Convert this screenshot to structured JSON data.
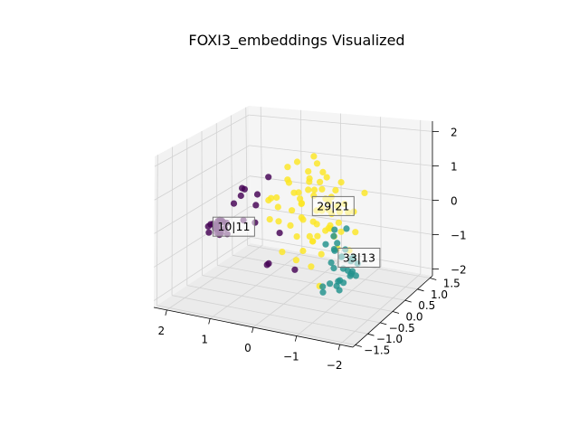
{
  "chart_data": {
    "type": "scatter",
    "projection": "3d",
    "title": "FOXI3_embeddings Visualized",
    "xlabel": "",
    "ylabel": "",
    "zlabel": "",
    "x_ticks": [
      2,
      1,
      0,
      -1,
      -2
    ],
    "y_ticks": [
      -1.5,
      -1.0,
      -0.5,
      0.0,
      0.5,
      1.0,
      1.5
    ],
    "z_ticks": [
      -2,
      -1,
      0,
      1,
      2
    ],
    "x_tick_labels": [
      "2",
      "1",
      "0",
      "−1",
      "−2"
    ],
    "y_tick_labels": [
      "−1.5",
      "−1.0",
      "−0.5",
      "0.0",
      "0.5",
      "1.0",
      "1.5"
    ],
    "z_tick_labels": [
      "−2",
      "−1",
      "0",
      "1",
      "2"
    ],
    "xlim": [
      -2.3,
      2.3
    ],
    "ylim": [
      -1.6,
      1.6
    ],
    "zlim": [
      -2.2,
      2.3
    ],
    "grid": true,
    "colors": {
      "purple": "#440154",
      "teal": "#21918c",
      "yellow": "#fde725"
    },
    "series": [
      {
        "cluster": 0,
        "color": "#440154",
        "points": [
          [
            1.75,
            -0.3,
            -0.4
          ],
          [
            1.65,
            -0.2,
            -0.3
          ],
          [
            1.8,
            -0.25,
            -0.5
          ],
          [
            1.7,
            -0.35,
            -0.45
          ],
          [
            1.6,
            -0.15,
            -0.35
          ],
          [
            1.85,
            -0.4,
            -0.55
          ],
          [
            1.72,
            -0.28,
            -0.25
          ],
          [
            1.78,
            -0.18,
            -0.6
          ],
          [
            1.68,
            -0.42,
            -0.38
          ],
          [
            1.82,
            -0.22,
            -0.42
          ],
          [
            1.62,
            -0.32,
            -0.52
          ],
          [
            1.74,
            -0.12,
            -0.32
          ],
          [
            1.88,
            -0.3,
            -0.36
          ],
          [
            1.66,
            -0.26,
            -0.62
          ],
          [
            1.76,
            -0.38,
            -0.28
          ],
          [
            1.58,
            -0.24,
            -0.46
          ],
          [
            1.84,
            -0.16,
            -0.48
          ],
          [
            1.7,
            -0.34,
            -0.56
          ],
          [
            1.64,
            -0.36,
            -0.3
          ],
          [
            1.79,
            -0.27,
            -0.44
          ],
          [
            1.55,
            -0.2,
            -0.65
          ],
          [
            1.9,
            -0.35,
            -0.4
          ],
          [
            1.73,
            -0.21,
            -0.7
          ],
          [
            1.67,
            -0.29,
            -0.2
          ],
          [
            1.4,
            0.1,
            0.6
          ],
          [
            1.1,
            0.2,
            0.4
          ],
          [
            0.9,
            0.3,
            0.9
          ],
          [
            1.2,
            -0.1,
            0.7
          ],
          [
            1.3,
            0.0,
            -0.3
          ],
          [
            0.7,
            0.4,
            -0.8
          ],
          [
            0.8,
            0.1,
            -1.6
          ],
          [
            0.9,
            0.3,
            -1.7
          ],
          [
            0.4,
            0.5,
            -1.9
          ],
          [
            1.5,
            0.2,
            0.3
          ],
          [
            1.0,
            0.0,
            0.2
          ],
          [
            1.3,
            0.4,
            -0.6
          ],
          [
            1.6,
            0.1,
            0.1
          ]
        ]
      },
      {
        "cluster": 1,
        "color": "#21918c",
        "points": [
          [
            -1.5,
            -0.7,
            -0.5
          ],
          [
            -1.6,
            -0.5,
            -0.7
          ],
          [
            -1.4,
            -0.8,
            -0.3
          ],
          [
            -1.7,
            -0.6,
            -0.9
          ],
          [
            -1.55,
            -0.4,
            -1.1
          ],
          [
            -1.45,
            -0.9,
            -0.2
          ],
          [
            -1.65,
            -0.55,
            -0.6
          ],
          [
            -1.35,
            -0.75,
            -0.8
          ],
          [
            -1.6,
            -0.85,
            -0.4
          ],
          [
            -1.5,
            -0.45,
            -1.0
          ],
          [
            -1.75,
            -0.65,
            -0.5
          ],
          [
            -1.4,
            -0.6,
            -1.2
          ],
          [
            -1.3,
            -0.5,
            -1.3
          ],
          [
            -1.55,
            -0.95,
            0.0
          ],
          [
            -1.7,
            -0.4,
            -0.8
          ],
          [
            -1.45,
            -0.7,
            -1.4
          ],
          [
            -1.6,
            -0.3,
            -1.2
          ],
          [
            -1.35,
            -0.85,
            -0.6
          ],
          [
            -1.5,
            -1.0,
            0.2
          ],
          [
            -1.2,
            -0.4,
            -1.5
          ],
          [
            -1.1,
            -0.5,
            -1.4
          ],
          [
            -1.0,
            -0.6,
            -1.6
          ],
          [
            -1.4,
            -0.2,
            -1.3
          ],
          [
            -1.25,
            -0.9,
            -0.1
          ],
          [
            -1.65,
            -0.75,
            0.3
          ],
          [
            -1.55,
            -1.05,
            0.4
          ],
          [
            -1.3,
            -0.3,
            -1.45
          ],
          [
            -0.9,
            -0.45,
            -1.55
          ],
          [
            -1.45,
            -0.55,
            -0.9
          ],
          [
            -1.58,
            -0.68,
            -0.3
          ]
        ]
      },
      {
        "cluster": 2,
        "color": "#fde725",
        "points": [
          [
            -0.4,
            0.1,
            0.2
          ],
          [
            -0.6,
            -0.2,
            0.0
          ],
          [
            -0.2,
            0.3,
            0.5
          ],
          [
            -0.8,
            0.0,
            -0.2
          ],
          [
            -0.5,
            0.4,
            0.3
          ],
          [
            -0.3,
            -0.3,
            0.6
          ],
          [
            -0.7,
            0.2,
            0.1
          ],
          [
            -0.1,
            0.0,
            0.4
          ],
          [
            -0.55,
            -0.1,
            -0.4
          ],
          [
            -0.25,
            0.25,
            0.7
          ],
          [
            -0.9,
            0.1,
            0.4
          ],
          [
            -0.4,
            -0.4,
            0.2
          ],
          [
            -0.6,
            0.3,
            -0.3
          ],
          [
            0.1,
            0.2,
            0.6
          ],
          [
            -0.35,
            0.05,
            -0.1
          ],
          [
            -0.75,
            -0.25,
            0.5
          ],
          [
            -0.2,
            -0.15,
            0.1
          ],
          [
            -0.5,
            0.15,
            0.8
          ],
          [
            0.2,
            0.4,
            0.3
          ],
          [
            -1.0,
            0.0,
            0.0
          ],
          [
            -0.45,
            0.35,
            -0.5
          ],
          [
            -0.15,
            -0.35,
            0.9
          ],
          [
            -0.65,
            0.05,
            0.6
          ],
          [
            0.3,
            0.1,
            1.0
          ],
          [
            -0.85,
            -0.15,
            -0.1
          ],
          [
            -0.3,
            0.45,
            0.0
          ],
          [
            0.0,
            -0.2,
            0.3
          ],
          [
            -0.55,
            0.25,
            1.1
          ],
          [
            -1.1,
            0.2,
            0.2
          ],
          [
            -0.4,
            -0.05,
            -0.6
          ],
          [
            0.4,
            0.3,
            0.8
          ],
          [
            -0.7,
            0.35,
            0.7
          ],
          [
            -0.2,
            0.1,
            1.3
          ],
          [
            -0.95,
            -0.3,
            0.5
          ],
          [
            0.1,
            -0.1,
            -0.2
          ],
          [
            -0.6,
            -0.35,
            -0.4
          ],
          [
            -0.35,
            0.2,
            1.5
          ],
          [
            0.5,
            0.0,
            0.5
          ],
          [
            -1.2,
            -0.1,
            0.6
          ],
          [
            -0.5,
            0.5,
            0.4
          ],
          [
            0.6,
            0.2,
            0.1
          ],
          [
            -0.8,
            0.4,
            -0.5
          ],
          [
            -0.1,
            0.3,
            -0.7
          ],
          [
            -0.45,
            -0.25,
            1.2
          ],
          [
            0.25,
            -0.3,
            0.0
          ],
          [
            -1.3,
            0.1,
            0.3
          ],
          [
            -0.65,
            -0.05,
            1.4
          ],
          [
            0.0,
            0.45,
            0.9
          ],
          [
            -0.25,
            -0.4,
            -0.3
          ],
          [
            -0.9,
            0.25,
            1.0
          ],
          [
            0.7,
            0.1,
            0.4
          ],
          [
            -0.4,
            0.0,
            1.8
          ],
          [
            0.8,
            0.2,
            -0.3
          ],
          [
            -1.4,
            0.0,
            -0.2
          ],
          [
            0.9,
            0.3,
            0.2
          ],
          [
            -0.5,
            0.6,
            -0.8
          ],
          [
            -0.3,
            -0.5,
            -0.9
          ],
          [
            -1.1,
            -0.2,
            -0.6
          ],
          [
            0.0,
            0.0,
            1.6
          ],
          [
            -0.7,
            0.5,
            0.0
          ],
          [
            -0.6,
            -0.1,
            -1.8
          ],
          [
            0.2,
            0.5,
            -1.3
          ],
          [
            -1.0,
            0.4,
            -1.0
          ],
          [
            0.3,
            -0.1,
            -1.0
          ],
          [
            -0.2,
            0.2,
            -1.5
          ],
          [
            -1.5,
            0.2,
            0.8
          ],
          [
            0.5,
            0.4,
            1.2
          ],
          [
            -0.8,
            -0.4,
            1.3
          ],
          [
            0.1,
            0.55,
            0.5
          ],
          [
            -0.35,
            0.35,
            -1.2
          ]
        ]
      }
    ],
    "annotations": [
      {
        "label": "10|11",
        "x": 1.75,
        "y": -0.28,
        "z": -0.42
      },
      {
        "label": "29|21",
        "x": -0.42,
        "y": 0.05,
        "z": 0.36
      },
      {
        "label": "33|13",
        "x": -1.48,
        "y": -0.65,
        "z": -0.55
      }
    ]
  }
}
